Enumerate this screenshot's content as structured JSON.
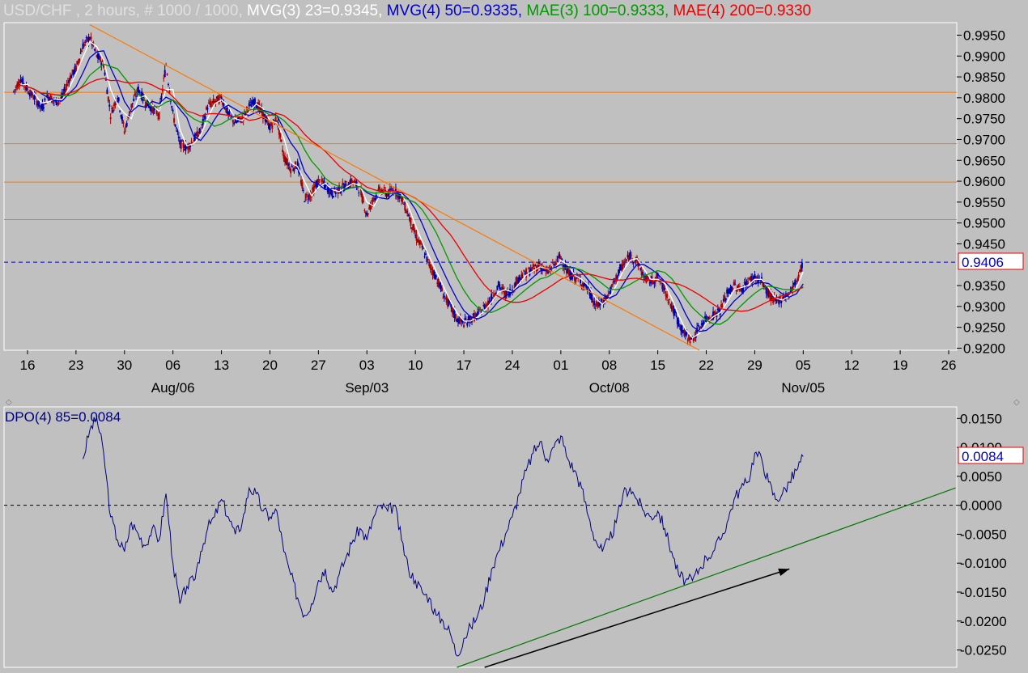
{
  "header": {
    "symbol": "USD/CHF",
    "interval": " , 2 hours, # 1000 / 1000, ",
    "ind1": "MVG(3) 23=0.9345, ",
    "ind2": "MVG(4) 50=0.9335, ",
    "ind3": "MAE(3) 100=0.9333, ",
    "ind4": "MAE(4) 200=0.9330"
  },
  "colors": {
    "background": "#c0c0c0",
    "mvg3": "#ffffff",
    "mvg4": "#0000cc",
    "mae3": "#009900",
    "mae4": "#ee0000",
    "trend": "#ff7700",
    "candle_up": "#0000aa",
    "candle_down": "#aa0000",
    "dpo": "#00007f",
    "support": "#007700"
  },
  "dpo_panel": {
    "title": "DPO(4) 85=0.0084",
    "last_value": "0.0084"
  },
  "chart_data": [
    {
      "type": "candlestick",
      "title": "USD/CHF , 2 hours",
      "last_price_label": "0.9406",
      "ylim": [
        0.9195,
        0.998
      ],
      "y_ticks": [
        "0.9950",
        "0.9900",
        "0.9850",
        "0.9800",
        "0.9750",
        "0.9700",
        "0.9650",
        "0.9600",
        "0.9550",
        "0.9500",
        "0.9450",
        "0.9350",
        "0.9300",
        "0.9250",
        "0.9200"
      ],
      "x_ticks": [
        "16",
        "23",
        "30",
        "06",
        "13",
        "20",
        "27",
        "03",
        "10",
        "17",
        "24",
        "01",
        "08",
        "15",
        "22",
        "29",
        "05",
        "12",
        "19",
        "26"
      ],
      "x_month_labels": [
        "Aug/06",
        "Sep/03",
        "Oct/08",
        "Nov/05"
      ],
      "horizontal_levels": [
        0.9813,
        0.969,
        0.9598,
        0.9508
      ],
      "last_price_level": 0.9406,
      "trendline": [
        {
          "date": "Jul 25",
          "value": 0.9975
        },
        {
          "date": "Oct 21",
          "value": 0.9195
        }
      ],
      "close_path": [
        [
          "Jul 14",
          0.9815
        ],
        [
          "Jul 15",
          0.9845
        ],
        [
          "Jul 16",
          0.982
        ],
        [
          "Jul 17",
          0.98
        ],
        [
          "Jul 18",
          0.9775
        ],
        [
          "Jul 19",
          0.9805
        ],
        [
          "Jul 20",
          0.979
        ],
        [
          "Jul 21",
          0.98
        ],
        [
          "Jul 22",
          0.9845
        ],
        [
          "Jul 23",
          0.987
        ],
        [
          "Jul 24",
          0.9925
        ],
        [
          "Jul 25",
          0.9945
        ],
        [
          "Jul 26",
          0.99
        ],
        [
          "Jul 27",
          0.988
        ],
        [
          "Jul 28",
          0.976
        ],
        [
          "Jul 29",
          0.9805
        ],
        [
          "Jul 30",
          0.972
        ],
        [
          "Jul 31",
          0.978
        ],
        [
          "Aug 01",
          0.982
        ],
        [
          "Aug 02",
          0.979
        ],
        [
          "Aug 03",
          0.9775
        ],
        [
          "Aug 04",
          0.976
        ],
        [
          "Aug 05",
          0.988
        ],
        [
          "Aug 06",
          0.976
        ],
        [
          "Aug 07",
          0.969
        ],
        [
          "Aug 08",
          0.968
        ],
        [
          "Aug 09",
          0.97
        ],
        [
          "Aug 10",
          0.972
        ],
        [
          "Aug 11",
          0.978
        ],
        [
          "Aug 12",
          0.979
        ],
        [
          "Aug 13",
          0.98
        ],
        [
          "Aug 14",
          0.976
        ],
        [
          "Aug 15",
          0.974
        ],
        [
          "Aug 16",
          0.975
        ],
        [
          "Aug 17",
          0.978
        ],
        [
          "Aug 18",
          0.979
        ],
        [
          "Aug 19",
          0.976
        ],
        [
          "Aug 20",
          0.973
        ],
        [
          "Aug 21",
          0.975
        ],
        [
          "Aug 22",
          0.966
        ],
        [
          "Aug 23",
          0.963
        ],
        [
          "Aug 24",
          0.964
        ],
        [
          "Aug 25",
          0.956
        ],
        [
          "Aug 26",
          0.957
        ],
        [
          "Aug 27",
          0.96
        ],
        [
          "Aug 28",
          0.959
        ],
        [
          "Aug 29",
          0.957
        ],
        [
          "Aug 30",
          0.958
        ],
        [
          "Aug 31",
          0.959
        ],
        [
          "Sep 01",
          0.96
        ],
        [
          "Sep 02",
          0.958
        ],
        [
          "Sep 03",
          0.952
        ],
        [
          "Sep 04",
          0.956
        ],
        [
          "Sep 05",
          0.958
        ],
        [
          "Sep 06",
          0.957
        ],
        [
          "Sep 07",
          0.958
        ],
        [
          "Sep 08",
          0.956
        ],
        [
          "Sep 09",
          0.952
        ],
        [
          "Sep 10",
          0.947
        ],
        [
          "Sep 11",
          0.944
        ],
        [
          "Sep 12",
          0.94
        ],
        [
          "Sep 13",
          0.937
        ],
        [
          "Sep 14",
          0.933
        ],
        [
          "Sep 15",
          0.93
        ],
        [
          "Sep 16",
          0.927
        ],
        [
          "Sep 17",
          0.926
        ],
        [
          "Sep 18",
          0.927
        ],
        [
          "Sep 19",
          0.928
        ],
        [
          "Sep 20",
          0.93
        ],
        [
          "Sep 21",
          0.932
        ],
        [
          "Sep 22",
          0.935
        ],
        [
          "Sep 23",
          0.933
        ],
        [
          "Sep 24",
          0.934
        ],
        [
          "Sep 25",
          0.937
        ],
        [
          "Sep 26",
          0.938
        ],
        [
          "Sep 27",
          0.939
        ],
        [
          "Sep 28",
          0.94
        ],
        [
          "Sep 29",
          0.938
        ],
        [
          "Sep 30",
          0.94
        ],
        [
          "Oct 01",
          0.942
        ],
        [
          "Oct 02",
          0.938
        ],
        [
          "Oct 03",
          0.937
        ],
        [
          "Oct 04",
          0.936
        ],
        [
          "Oct 05",
          0.934
        ],
        [
          "Oct 06",
          0.93
        ],
        [
          "Oct 07",
          0.931
        ],
        [
          "Oct 08",
          0.933
        ],
        [
          "Oct 09",
          0.937
        ],
        [
          "Oct 10",
          0.94
        ],
        [
          "Oct 11",
          0.942
        ],
        [
          "Oct 12",
          0.941
        ],
        [
          "Oct 13",
          0.937
        ],
        [
          "Oct 14",
          0.936
        ],
        [
          "Oct 15",
          0.937
        ],
        [
          "Oct 16",
          0.934
        ],
        [
          "Oct 17",
          0.93
        ],
        [
          "Oct 18",
          0.926
        ],
        [
          "Oct 19",
          0.923
        ],
        [
          "Oct 20",
          0.922
        ],
        [
          "Oct 21",
          0.925
        ],
        [
          "Oct 22",
          0.927
        ],
        [
          "Oct 23",
          0.928
        ],
        [
          "Oct 24",
          0.929
        ],
        [
          "Oct 25",
          0.933
        ],
        [
          "Oct 26",
          0.935
        ],
        [
          "Oct 27",
          0.934
        ],
        [
          "Oct 28",
          0.936
        ],
        [
          "Oct 29",
          0.937
        ],
        [
          "Oct 30",
          0.936
        ],
        [
          "Oct 31",
          0.933
        ],
        [
          "Nov 01",
          0.931
        ],
        [
          "Nov 02",
          0.932
        ],
        [
          "Nov 03",
          0.933
        ],
        [
          "Nov 04",
          0.936
        ],
        [
          "Nov 05",
          0.9406
        ]
      ],
      "series": [
        {
          "name": "MVG(3) 23",
          "last": 0.9345
        },
        {
          "name": "MVG(4) 50",
          "last": 0.9335
        },
        {
          "name": "MAE(3) 100",
          "last": 0.9333
        },
        {
          "name": "MAE(4) 200",
          "last": 0.933
        }
      ]
    },
    {
      "type": "line",
      "title": "DPO(4) 85=0.0084",
      "ylim": [
        -0.028,
        0.017
      ],
      "y_ticks": [
        "0.0150",
        "0.0100",
        "0.0050",
        "0.0000",
        "-0.0050",
        "-0.0100",
        "-0.0150",
        "-0.0200",
        "-0.0250"
      ],
      "zero_line": 0.0,
      "values": [
        [
          "Jul 24",
          0.008
        ],
        [
          "Jul 25",
          0.013
        ],
        [
          "Jul 26",
          0.015
        ],
        [
          "Jul 27",
          0.009
        ],
        [
          "Jul 28",
          -0.002
        ],
        [
          "Jul 29",
          -0.006
        ],
        [
          "Jul 30",
          -0.008
        ],
        [
          "Jul 31",
          -0.003
        ],
        [
          "Aug 01",
          -0.005
        ],
        [
          "Aug 02",
          -0.007
        ],
        [
          "Aug 03",
          -0.004
        ],
        [
          "Aug 04",
          -0.006
        ],
        [
          "Aug 05",
          0.002
        ],
        [
          "Aug 06",
          -0.01
        ],
        [
          "Aug 07",
          -0.017
        ],
        [
          "Aug 08",
          -0.014
        ],
        [
          "Aug 09",
          -0.013
        ],
        [
          "Aug 10",
          -0.008
        ],
        [
          "Aug 11",
          -0.004
        ],
        [
          "Aug 12",
          -0.002
        ],
        [
          "Aug 13",
          0.001
        ],
        [
          "Aug 14",
          -0.002
        ],
        [
          "Aug 15",
          -0.005
        ],
        [
          "Aug 16",
          -0.003
        ],
        [
          "Aug 17",
          0.003
        ],
        [
          "Aug 18",
          0.002
        ],
        [
          "Aug 19",
          -0.001
        ],
        [
          "Aug 20",
          -0.002
        ],
        [
          "Aug 21",
          -0.001
        ],
        [
          "Aug 22",
          -0.008
        ],
        [
          "Aug 23",
          -0.012
        ],
        [
          "Aug 24",
          -0.016
        ],
        [
          "Aug 25",
          -0.019
        ],
        [
          "Aug 26",
          -0.017
        ],
        [
          "Aug 27",
          -0.013
        ],
        [
          "Aug 28",
          -0.011
        ],
        [
          "Aug 29",
          -0.015
        ],
        [
          "Aug 30",
          -0.012
        ],
        [
          "Aug 31",
          -0.009
        ],
        [
          "Sep 01",
          -0.006
        ],
        [
          "Sep 02",
          -0.004
        ],
        [
          "Sep 03",
          -0.006
        ],
        [
          "Sep 04",
          -0.002
        ],
        [
          "Sep 05",
          0.0
        ],
        [
          "Sep 06",
          -0.001
        ],
        [
          "Sep 07",
          0.0
        ],
        [
          "Sep 08",
          -0.006
        ],
        [
          "Sep 09",
          -0.011
        ],
        [
          "Sep 10",
          -0.013
        ],
        [
          "Sep 11",
          -0.015
        ],
        [
          "Sep 12",
          -0.016
        ],
        [
          "Sep 13",
          -0.019
        ],
        [
          "Sep 14",
          -0.02
        ],
        [
          "Sep 15",
          -0.022
        ],
        [
          "Sep 16",
          -0.026
        ],
        [
          "Sep 17",
          -0.023
        ],
        [
          "Sep 18",
          -0.021
        ],
        [
          "Sep 19",
          -0.019
        ],
        [
          "Sep 20",
          -0.016
        ],
        [
          "Sep 21",
          -0.011
        ],
        [
          "Sep 22",
          -0.008
        ],
        [
          "Sep 23",
          -0.005
        ],
        [
          "Sep 24",
          -0.002
        ],
        [
          "Sep 25",
          0.002
        ],
        [
          "Sep 26",
          0.006
        ],
        [
          "Sep 27",
          0.009
        ],
        [
          "Sep 28",
          0.011
        ],
        [
          "Sep 29",
          0.008
        ],
        [
          "Sep 30",
          0.01
        ],
        [
          "Oct 01",
          0.012
        ],
        [
          "Oct 02",
          0.008
        ],
        [
          "Oct 03",
          0.006
        ],
        [
          "Oct 04",
          0.003
        ],
        [
          "Oct 05",
          -0.002
        ],
        [
          "Oct 06",
          -0.006
        ],
        [
          "Oct 07",
          -0.008
        ],
        [
          "Oct 08",
          -0.006
        ],
        [
          "Oct 09",
          -0.003
        ],
        [
          "Oct 10",
          0.002
        ],
        [
          "Oct 11",
          0.003
        ],
        [
          "Oct 12",
          0.001
        ],
        [
          "Oct 13",
          -0.001
        ],
        [
          "Oct 14",
          -0.002
        ],
        [
          "Oct 15",
          -0.001
        ],
        [
          "Oct 16",
          -0.004
        ],
        [
          "Oct 17",
          -0.008
        ],
        [
          "Oct 18",
          -0.012
        ],
        [
          "Oct 19",
          -0.013
        ],
        [
          "Oct 20",
          -0.013
        ],
        [
          "Oct 21",
          -0.011
        ],
        [
          "Oct 22",
          -0.009
        ],
        [
          "Oct 23",
          -0.008
        ],
        [
          "Oct 24",
          -0.006
        ],
        [
          "Oct 25",
          -0.003
        ],
        [
          "Oct 26",
          0.001
        ],
        [
          "Oct 27",
          0.003
        ],
        [
          "Oct 28",
          0.004
        ],
        [
          "Oct 29",
          0.009
        ],
        [
          "Oct 30",
          0.008
        ],
        [
          "Oct 31",
          0.004
        ],
        [
          "Nov 01",
          0.001
        ],
        [
          "Nov 02",
          0.002
        ],
        [
          "Nov 03",
          0.004
        ],
        [
          "Nov 04",
          0.006
        ],
        [
          "Nov 05",
          0.0084
        ]
      ],
      "support_line": [
        {
          "date": "Sep 16",
          "value": -0.028
        },
        {
          "date": "Nov 27",
          "value": 0.003
        }
      ],
      "arrow": [
        {
          "date": "Sep 20",
          "value": -0.028
        },
        {
          "date": "Nov 03",
          "value": -0.011
        }
      ]
    }
  ]
}
